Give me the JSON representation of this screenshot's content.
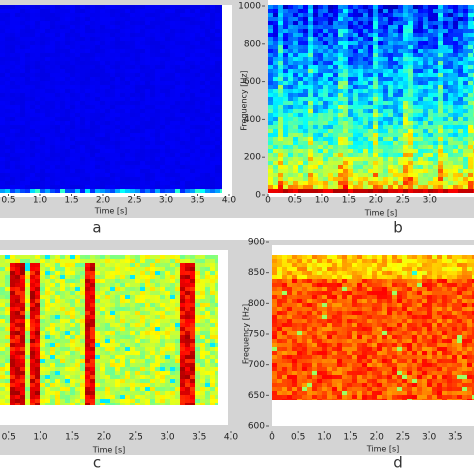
{
  "chart_data": [
    {
      "type": "spectrogram",
      "panel_label": "a",
      "x_label": "Time [s]",
      "xlim": [
        0,
        4
      ],
      "xticks": [
        0.5,
        {
          "value": 1,
          "label": "1.0"
        },
        1.5,
        {
          "value": 2,
          "label": "2.0"
        },
        2.5,
        {
          "value": 3,
          "label": "3.0"
        },
        3.5,
        {
          "value": 4,
          "label": "4.0"
        }
      ]
    },
    {
      "type": "spectrogram",
      "panel_label": "b",
      "x_label": "Time [s]",
      "y_label": "Frequency [Hz]",
      "xlim": [
        0,
        3.8
      ],
      "xticks": [
        0,
        0.5,
        {
          "value": 1,
          "label": "1.0"
        },
        1.5,
        {
          "value": 2,
          "label": "2.0"
        },
        2.5,
        {
          "value": 3,
          "label": "3.0"
        }
      ],
      "ylim": [
        0,
        1000
      ],
      "yticks": [
        0,
        200,
        400,
        600,
        800,
        1000
      ]
    },
    {
      "type": "spectrogram",
      "panel_label": "c",
      "x_label": "Time [s]",
      "xlim": [
        0,
        4
      ],
      "xticks": [
        0.5,
        {
          "value": 1,
          "label": "1.0"
        },
        1.5,
        {
          "value": 2,
          "label": "2.0"
        },
        2.5,
        {
          "value": 3,
          "label": "3.0"
        },
        3.5,
        {
          "value": 4,
          "label": "4.0"
        }
      ]
    },
    {
      "type": "spectrogram",
      "panel_label": "d",
      "x_label": "Time [s]",
      "y_label": "Frequency [Hz]",
      "xlim": [
        0,
        3.8
      ],
      "xticks": [
        0,
        0.5,
        {
          "value": 1,
          "label": "1.0"
        },
        1.5,
        {
          "value": 2,
          "label": "2.0"
        },
        2.5,
        {
          "value": 3,
          "label": "3.0"
        },
        3.5
      ],
      "ylim": [
        600,
        900
      ],
      "yticks": [
        600,
        650,
        700,
        750,
        800,
        850,
        900
      ]
    }
  ]
}
